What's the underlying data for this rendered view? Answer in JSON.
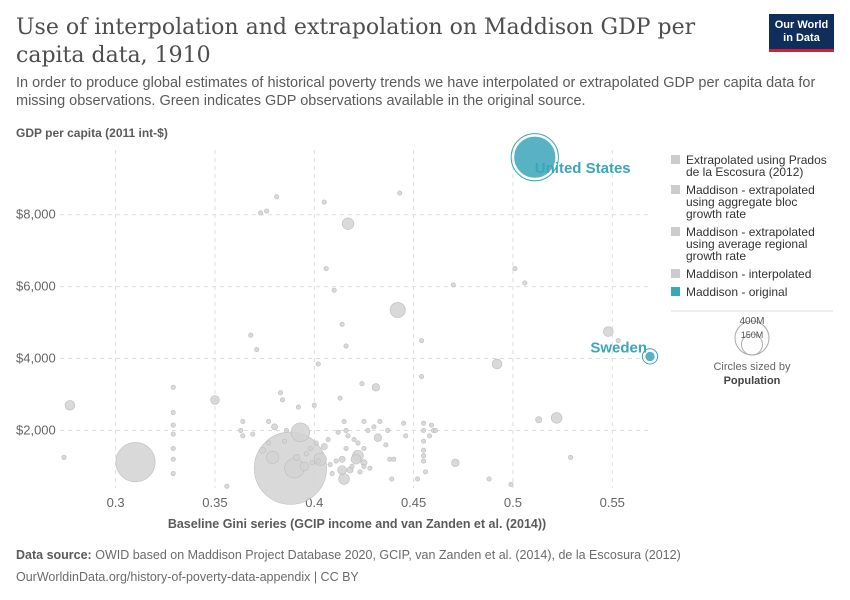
{
  "header": {
    "title": "Use of interpolation and extrapolation on Maddison GDP per capita data, 1910",
    "subtitle": "In order to produce global estimates of historical poverty trends we have interpolated or extrapolated GDP per capita data for missing observations. Green indicates GDP observations available in the original source.",
    "logo_line1": "Our World",
    "logo_line2": "in Data"
  },
  "footer": {
    "source_label": "Data source:",
    "source_text": "OWID based on Maddison Project Database 2020, GCIP, van Zanden et al. (2014), de la Escosura (2012)",
    "url": "OurWorldinData.org/history-of-poverty-data-appendix | CC BY"
  },
  "chart_data": {
    "type": "scatter",
    "ylabel": "GDP per capita (2011 int-$)",
    "xlabel": "Baseline Gini series (GCIP income and van Zanden et al. (2014))",
    "xlim": [
      0.272,
      0.57
    ],
    "ylim": [
      400,
      9800
    ],
    "x_ticks": [
      {
        "v": 0.3,
        "l": "0.3"
      },
      {
        "v": 0.35,
        "l": "0.35"
      },
      {
        "v": 0.4,
        "l": "0.4"
      },
      {
        "v": 0.45,
        "l": "0.45"
      },
      {
        "v": 0.5,
        "l": "0.5"
      },
      {
        "v": 0.55,
        "l": "0.55"
      }
    ],
    "y_ticks": [
      {
        "v": 2000,
        "l": "$2,000"
      },
      {
        "v": 4000,
        "l": "$4,000"
      },
      {
        "v": 6000,
        "l": "$6,000"
      },
      {
        "v": 8000,
        "l": "$8,000"
      }
    ],
    "grid": true,
    "legend": [
      {
        "label": "Extrapolated using Prados de la Escosura (2012)",
        "lines": [
          "Extrapolated using Prados",
          "de la Escosura (2012)"
        ],
        "color": "#cccccc"
      },
      {
        "label": "Maddison - extrapolated using aggregate bloc growth rate",
        "lines": [
          "Maddison - extrapolated",
          "using aggregate bloc",
          "growth rate"
        ],
        "color": "#cccccc"
      },
      {
        "label": "Maddison - extrapolated using average regional growth rate",
        "lines": [
          "Maddison - extrapolated",
          "using average regional",
          "growth rate"
        ],
        "color": "#cccccc"
      },
      {
        "label": "Maddison - interpolated",
        "lines": [
          "Maddison - interpolated"
        ],
        "color": "#cccccc"
      },
      {
        "label": "Maddison - original",
        "lines": [
          "Maddison - original"
        ],
        "color": "#3aa6b9"
      }
    ],
    "size_legend": {
      "title": "Circles sized by",
      "variable": "Population",
      "large": "400M",
      "small": "150M"
    },
    "labeled_points": [
      {
        "name": "United States",
        "x": 0.511,
        "y": 9600,
        "pop": 92,
        "color": "#3aa6b9"
      },
      {
        "name": "Sweden",
        "x": 0.569,
        "y": 4060,
        "pop": 5.5,
        "color": "#3aa6b9"
      }
    ],
    "points": [
      {
        "x": 0.277,
        "y": 2700,
        "pop": 5
      },
      {
        "x": 0.274,
        "y": 1250,
        "pop": 1
      },
      {
        "x": 0.31,
        "y": 1120,
        "pop": 80
      },
      {
        "x": 0.329,
        "y": 3200,
        "pop": 1
      },
      {
        "x": 0.329,
        "y": 2500,
        "pop": 1
      },
      {
        "x": 0.329,
        "y": 2150,
        "pop": 1
      },
      {
        "x": 0.329,
        "y": 1900,
        "pop": 1
      },
      {
        "x": 0.329,
        "y": 1500,
        "pop": 1
      },
      {
        "x": 0.329,
        "y": 1200,
        "pop": 1
      },
      {
        "x": 0.329,
        "y": 800,
        "pop": 1
      },
      {
        "x": 0.35,
        "y": 2850,
        "pop": 4
      },
      {
        "x": 0.356,
        "y": 450,
        "pop": 1
      },
      {
        "x": 0.363,
        "y": 2000,
        "pop": 1
      },
      {
        "x": 0.364,
        "y": 2250,
        "pop": 1
      },
      {
        "x": 0.364,
        "y": 1850,
        "pop": 1
      },
      {
        "x": 0.368,
        "y": 4650,
        "pop": 1
      },
      {
        "x": 0.369,
        "y": 1900,
        "pop": 1
      },
      {
        "x": 0.371,
        "y": 4250,
        "pop": 1
      },
      {
        "x": 0.373,
        "y": 8050,
        "pop": 1
      },
      {
        "x": 0.374,
        "y": 1450,
        "pop": 2
      },
      {
        "x": 0.376,
        "y": 8100,
        "pop": 1
      },
      {
        "x": 0.377,
        "y": 2250,
        "pop": 1
      },
      {
        "x": 0.377,
        "y": 1650,
        "pop": 1
      },
      {
        "x": 0.379,
        "y": 1250,
        "pop": 8
      },
      {
        "x": 0.38,
        "y": 2100,
        "pop": 2
      },
      {
        "x": 0.381,
        "y": 8500,
        "pop": 1
      },
      {
        "x": 0.383,
        "y": 3050,
        "pop": 1
      },
      {
        "x": 0.384,
        "y": 2850,
        "pop": 1
      },
      {
        "x": 0.385,
        "y": 1700,
        "pop": 1
      },
      {
        "x": 0.386,
        "y": 2000,
        "pop": 1
      },
      {
        "x": 0.388,
        "y": 950,
        "pop": 270
      },
      {
        "x": 0.39,
        "y": 950,
        "pop": 20
      },
      {
        "x": 0.391,
        "y": 1250,
        "pop": 2
      },
      {
        "x": 0.392,
        "y": 2650,
        "pop": 1
      },
      {
        "x": 0.393,
        "y": 1950,
        "pop": 18
      },
      {
        "x": 0.395,
        "y": 1000,
        "pop": 4
      },
      {
        "x": 0.396,
        "y": 1350,
        "pop": 1
      },
      {
        "x": 0.398,
        "y": 1500,
        "pop": 1
      },
      {
        "x": 0.399,
        "y": 1100,
        "pop": 1
      },
      {
        "x": 0.4,
        "y": 2700,
        "pop": 1
      },
      {
        "x": 0.401,
        "y": 1650,
        "pop": 1
      },
      {
        "x": 0.402,
        "y": 3850,
        "pop": 1
      },
      {
        "x": 0.402,
        "y": 1150,
        "pop": 1
      },
      {
        "x": 0.403,
        "y": 1200,
        "pop": 8
      },
      {
        "x": 0.405,
        "y": 1550,
        "pop": 2
      },
      {
        "x": 0.405,
        "y": 8350,
        "pop": 1
      },
      {
        "x": 0.406,
        "y": 6500,
        "pop": 1
      },
      {
        "x": 0.407,
        "y": 1750,
        "pop": 1
      },
      {
        "x": 0.408,
        "y": 1050,
        "pop": 1
      },
      {
        "x": 0.409,
        "y": 800,
        "pop": 1
      },
      {
        "x": 0.41,
        "y": 5900,
        "pop": 1
      },
      {
        "x": 0.411,
        "y": 1150,
        "pop": 1
      },
      {
        "x": 0.412,
        "y": 1950,
        "pop": 1
      },
      {
        "x": 0.413,
        "y": 2900,
        "pop": 1
      },
      {
        "x": 0.414,
        "y": 4950,
        "pop": 1
      },
      {
        "x": 0.414,
        "y": 1200,
        "pop": 2
      },
      {
        "x": 0.414,
        "y": 900,
        "pop": 4
      },
      {
        "x": 0.415,
        "y": 650,
        "pop": 6
      },
      {
        "x": 0.415,
        "y": 2250,
        "pop": 1
      },
      {
        "x": 0.416,
        "y": 1500,
        "pop": 1
      },
      {
        "x": 0.416,
        "y": 4350,
        "pop": 1
      },
      {
        "x": 0.416,
        "y": 2000,
        "pop": 1
      },
      {
        "x": 0.417,
        "y": 1850,
        "pop": 1
      },
      {
        "x": 0.417,
        "y": 7750,
        "pop": 7
      },
      {
        "x": 0.418,
        "y": 900,
        "pop": 2
      },
      {
        "x": 0.419,
        "y": 1000,
        "pop": 1
      },
      {
        "x": 0.42,
        "y": 1750,
        "pop": 1
      },
      {
        "x": 0.421,
        "y": 1200,
        "pop": 5
      },
      {
        "x": 0.422,
        "y": 1300,
        "pop": 6
      },
      {
        "x": 0.422,
        "y": 1650,
        "pop": 1
      },
      {
        "x": 0.423,
        "y": 850,
        "pop": 1
      },
      {
        "x": 0.424,
        "y": 3300,
        "pop": 1
      },
      {
        "x": 0.425,
        "y": 1100,
        "pop": 2
      },
      {
        "x": 0.425,
        "y": 2250,
        "pop": 1
      },
      {
        "x": 0.425,
        "y": 1000,
        "pop": 1
      },
      {
        "x": 0.425,
        "y": 1500,
        "pop": 1
      },
      {
        "x": 0.427,
        "y": 2000,
        "pop": 1
      },
      {
        "x": 0.428,
        "y": 950,
        "pop": 1
      },
      {
        "x": 0.43,
        "y": 2100,
        "pop": 1
      },
      {
        "x": 0.431,
        "y": 3200,
        "pop": 3
      },
      {
        "x": 0.432,
        "y": 1800,
        "pop": 3
      },
      {
        "x": 0.433,
        "y": 2250,
        "pop": 1
      },
      {
        "x": 0.436,
        "y": 1600,
        "pop": 1
      },
      {
        "x": 0.437,
        "y": 2000,
        "pop": 1
      },
      {
        "x": 0.438,
        "y": 1200,
        "pop": 1
      },
      {
        "x": 0.439,
        "y": 650,
        "pop": 1
      },
      {
        "x": 0.44,
        "y": 1200,
        "pop": 1
      },
      {
        "x": 0.442,
        "y": 5350,
        "pop": 12
      },
      {
        "x": 0.443,
        "y": 8600,
        "pop": 1
      },
      {
        "x": 0.445,
        "y": 2200,
        "pop": 1
      },
      {
        "x": 0.446,
        "y": 1850,
        "pop": 1
      },
      {
        "x": 0.452,
        "y": 650,
        "pop": 1
      },
      {
        "x": 0.454,
        "y": 4500,
        "pop": 1
      },
      {
        "x": 0.454,
        "y": 3500,
        "pop": 1
      },
      {
        "x": 0.455,
        "y": 1700,
        "pop": 1
      },
      {
        "x": 0.455,
        "y": 1450,
        "pop": 1
      },
      {
        "x": 0.455,
        "y": 1300,
        "pop": 1
      },
      {
        "x": 0.455,
        "y": 1150,
        "pop": 1
      },
      {
        "x": 0.455,
        "y": 2000,
        "pop": 1
      },
      {
        "x": 0.455,
        "y": 2200,
        "pop": 1
      },
      {
        "x": 0.456,
        "y": 850,
        "pop": 1
      },
      {
        "x": 0.458,
        "y": 1850,
        "pop": 1
      },
      {
        "x": 0.459,
        "y": 2150,
        "pop": 1
      },
      {
        "x": 0.46,
        "y": 2000,
        "pop": 1
      },
      {
        "x": 0.461,
        "y": 2000,
        "pop": 1
      },
      {
        "x": 0.47,
        "y": 6050,
        "pop": 1
      },
      {
        "x": 0.471,
        "y": 1100,
        "pop": 3
      },
      {
        "x": 0.488,
        "y": 650,
        "pop": 1
      },
      {
        "x": 0.492,
        "y": 3850,
        "pop": 5
      },
      {
        "x": 0.499,
        "y": 500,
        "pop": 1
      },
      {
        "x": 0.501,
        "y": 6500,
        "pop": 1
      },
      {
        "x": 0.506,
        "y": 6100,
        "pop": 1
      },
      {
        "x": 0.513,
        "y": 2300,
        "pop": 2
      },
      {
        "x": 0.522,
        "y": 2350,
        "pop": 6
      },
      {
        "x": 0.529,
        "y": 1250,
        "pop": 1
      },
      {
        "x": 0.548,
        "y": 4750,
        "pop": 5
      },
      {
        "x": 0.553,
        "y": 4500,
        "pop": 1
      }
    ]
  }
}
